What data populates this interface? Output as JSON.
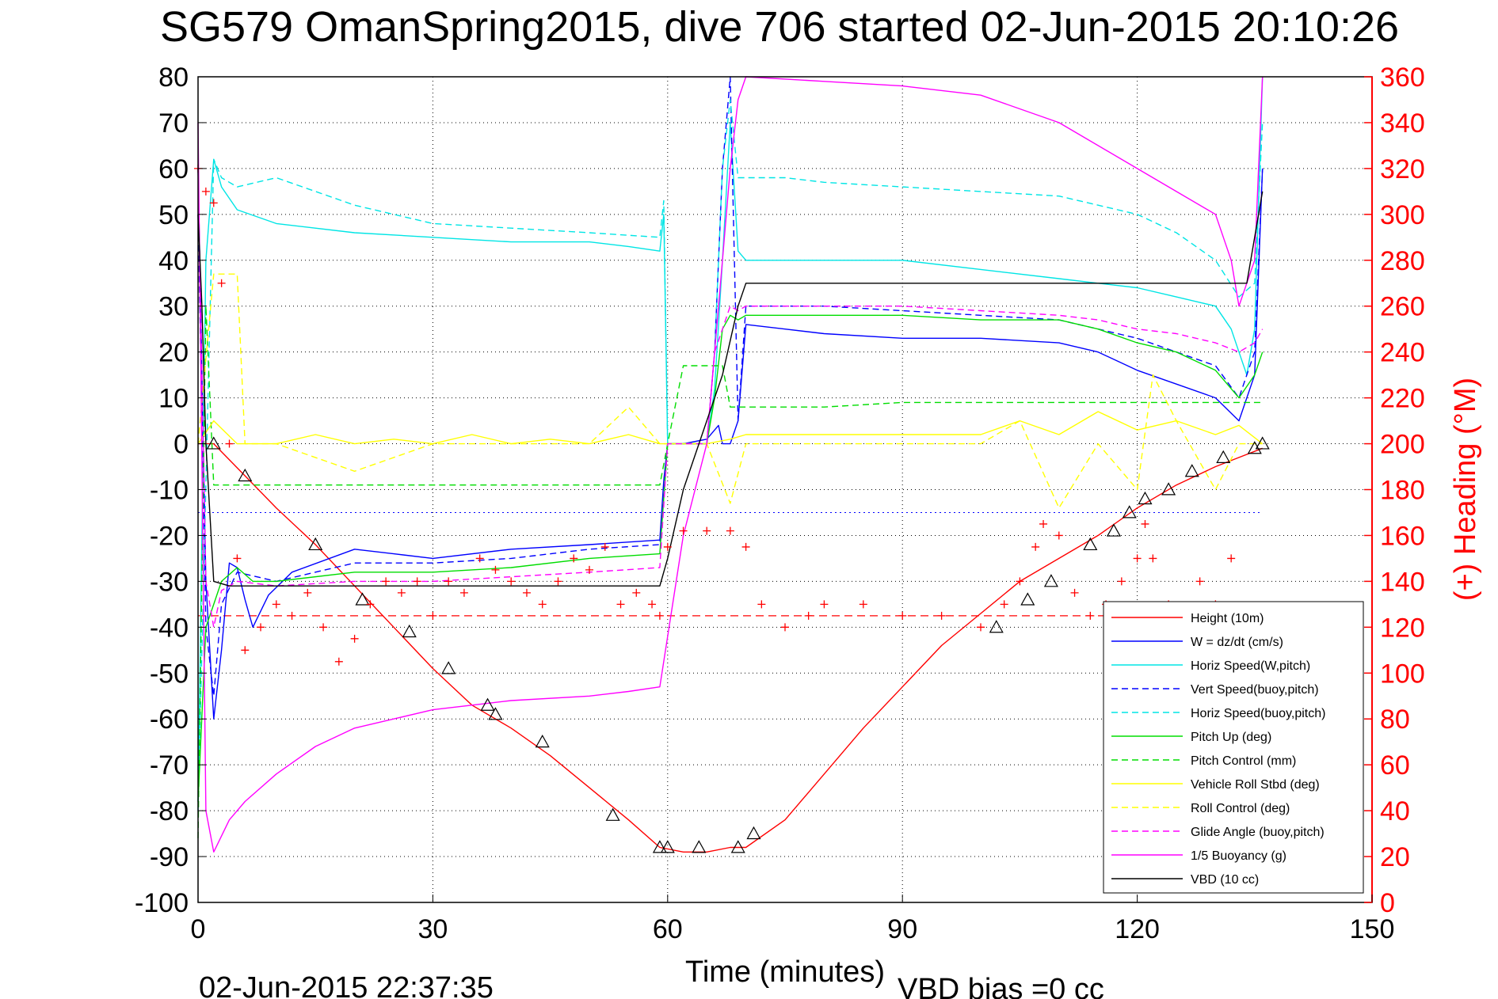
{
  "chart_data": {
    "type": "line",
    "title": "SG579 OmanSpring2015, dive 706 started 02-Jun-2015 20:10:26",
    "xlabel": "Time (minutes)",
    "ylabel_right": "(+) Heading (°M)",
    "footer_left": "02-Jun-2015 22:37:35",
    "footer_right": "VBD bias =0 cc",
    "xlim": [
      0,
      150
    ],
    "ylim": [
      -100,
      80
    ],
    "ylim_right": [
      0,
      360
    ],
    "xticks": [
      "0",
      "30",
      "60",
      "90",
      "120",
      "150"
    ],
    "yticks": [
      "80",
      "70",
      "60",
      "50",
      "40",
      "30",
      "20",
      "10",
      "0",
      "-10",
      "-20",
      "-30",
      "-40",
      "-50",
      "-60",
      "-70",
      "-80",
      "-90",
      "-100"
    ],
    "yticks_right": [
      "360",
      "340",
      "320",
      "300",
      "280",
      "260",
      "240",
      "220",
      "200",
      "180",
      "160",
      "140",
      "120",
      "100",
      "80",
      "60",
      "40",
      "20",
      "0"
    ],
    "grid": true,
    "legend_position": "bottom-right",
    "colors": {
      "axis_right": "#ff0000",
      "grid": "#000000"
    },
    "series": [
      {
        "name": "Height (10m)",
        "color": "#ff0000",
        "dash": "solid",
        "x": [
          0,
          2,
          6,
          10,
          15,
          20,
          25,
          30,
          35,
          40,
          45,
          50,
          55,
          59,
          62,
          65,
          68,
          70,
          75,
          80,
          85,
          90,
          95,
          100,
          105,
          110,
          115,
          120,
          125,
          130,
          133,
          136
        ],
        "y": [
          0,
          0,
          -7,
          -14,
          -22,
          -31,
          -40,
          -49,
          -57,
          -62,
          -68,
          -75,
          -82,
          -88,
          -89,
          -89,
          -88,
          -88,
          -82,
          -72,
          -62,
          -53,
          -44,
          -37,
          -30,
          -25,
          -20,
          -14,
          -9,
          -5,
          -3,
          -1
        ]
      },
      {
        "name": "W = dz/dt (cm/s)",
        "color": "#0000ff",
        "dash": "solid",
        "x": [
          0,
          1,
          2,
          3,
          4,
          5,
          6,
          7,
          9,
          12,
          20,
          25,
          30,
          40,
          50,
          59,
          59.5,
          60,
          62,
          65,
          66.5,
          67,
          68,
          69,
          70,
          75,
          80,
          90,
          100,
          110,
          115,
          120,
          125,
          130,
          133,
          135,
          136
        ],
        "y": [
          60,
          -30,
          -60,
          -45,
          -26,
          -27,
          -34,
          -40,
          -33,
          -28,
          -23,
          -24,
          -25,
          -23,
          -22,
          -21,
          -8,
          0,
          0,
          1,
          4,
          0,
          0,
          5,
          26,
          25,
          24,
          23,
          23,
          22,
          20,
          16,
          13,
          10,
          5,
          15,
          60
        ]
      },
      {
        "name": "Horiz Speed(W,pitch)",
        "color": "#00e5e5",
        "dash": "solid",
        "x": [
          0,
          1,
          2,
          3,
          5,
          10,
          20,
          30,
          40,
          50,
          55,
          59,
          59.5,
          60,
          62,
          65,
          66,
          67,
          68,
          69,
          70,
          75,
          80,
          90,
          100,
          110,
          115,
          120,
          125,
          130,
          132,
          133,
          134,
          135,
          136
        ],
        "y": [
          -78,
          40,
          62,
          56,
          51,
          48,
          46,
          45,
          44,
          44,
          43,
          42,
          50,
          0,
          0,
          0,
          12,
          40,
          70,
          42,
          40,
          40,
          40,
          40,
          38,
          36,
          35,
          34,
          32,
          30,
          25,
          20,
          15,
          25,
          80
        ]
      },
      {
        "name": "Vert Speed(buoy,pitch)",
        "color": "#0000ff",
        "dash": "dashed",
        "x": [
          0,
          1,
          2,
          3,
          5,
          10,
          20,
          30,
          40,
          50,
          59,
          60,
          62,
          65,
          66,
          67,
          68,
          69,
          70,
          80,
          90,
          100,
          110,
          120,
          125,
          130,
          133,
          135,
          136
        ],
        "y": [
          50,
          -40,
          -55,
          -35,
          -28,
          -30,
          -26,
          -26,
          -25,
          -23,
          -22,
          0,
          0,
          0,
          20,
          60,
          80,
          5,
          30,
          30,
          29,
          28,
          27,
          23,
          20,
          17,
          10,
          20,
          60
        ]
      },
      {
        "name": "Horiz Speed(buoy,pitch)",
        "color": "#00e5e5",
        "dash": "dashed",
        "x": [
          0,
          2,
          3,
          5,
          10,
          20,
          30,
          40,
          50,
          59,
          59.5,
          60,
          62,
          65,
          66,
          67,
          68,
          69,
          70,
          75,
          80,
          90,
          100,
          110,
          115,
          120,
          125,
          130,
          133,
          135,
          136
        ],
        "y": [
          -80,
          62,
          58,
          56,
          58,
          52,
          48,
          47,
          46,
          45,
          53,
          0,
          0,
          0,
          20,
          60,
          75,
          58,
          58,
          58,
          57,
          56,
          55,
          54,
          52,
          50,
          46,
          40,
          32,
          35,
          70
        ]
      },
      {
        "name": "Pitch Up (deg)",
        "color": "#00dd00",
        "dash": "solid",
        "x": [
          0,
          1,
          2,
          3,
          5,
          7,
          10,
          20,
          30,
          40,
          50,
          59,
          60,
          62,
          65,
          66,
          67,
          68,
          69,
          70,
          80,
          90,
          100,
          110,
          115,
          120,
          125,
          130,
          133,
          135,
          136
        ],
        "y": [
          -78,
          -40,
          -35,
          -30,
          -27,
          -30,
          -30,
          -28,
          -28,
          -27,
          -25,
          -24,
          0,
          0,
          0,
          10,
          25,
          28,
          27,
          28,
          28,
          28,
          27,
          27,
          25,
          22,
          20,
          16,
          10,
          15,
          20
        ]
      },
      {
        "name": "Pitch Control (mm)",
        "color": "#00dd00",
        "dash": "dashed",
        "x": [
          0,
          1,
          2,
          5,
          10,
          20,
          30,
          40,
          50,
          59,
          60,
          62,
          65,
          66,
          67,
          68,
          69,
          70,
          80,
          90,
          100,
          110,
          120,
          125,
          130,
          133,
          136
        ],
        "y": [
          -86,
          30,
          -9,
          -9,
          -9,
          -9,
          -9,
          -9,
          -9,
          -9,
          0,
          17,
          17,
          17,
          17,
          8,
          8,
          8,
          8,
          9,
          9,
          9,
          9,
          9,
          9,
          9,
          9
        ]
      },
      {
        "name": "Vehicle Roll Stbd (deg)",
        "color": "#ffff00",
        "dash": "solid",
        "x": [
          0,
          2,
          5,
          10,
          15,
          20,
          25,
          30,
          35,
          40,
          45,
          50,
          55,
          59,
          60,
          62,
          65,
          68,
          70,
          80,
          90,
          100,
          105,
          110,
          115,
          120,
          125,
          130,
          133,
          136
        ],
        "y": [
          0,
          5,
          0,
          0,
          2,
          0,
          1,
          0,
          2,
          0,
          1,
          0,
          2,
          0,
          0,
          0,
          0,
          1,
          2,
          2,
          2,
          2,
          5,
          2,
          7,
          3,
          5,
          2,
          4,
          0
        ]
      },
      {
        "name": "Roll Control (deg)",
        "color": "#ffff00",
        "dash": "dashed",
        "x": [
          0,
          2,
          3,
          5,
          6,
          10,
          20,
          30,
          40,
          50,
          55,
          59,
          60,
          62,
          65,
          68,
          70,
          80,
          90,
          100,
          105,
          110,
          115,
          120,
          122,
          125,
          130,
          133,
          136
        ],
        "y": [
          0,
          37,
          37,
          37,
          0,
          0,
          -6,
          0,
          0,
          0,
          8,
          0,
          0,
          0,
          0,
          -13,
          0,
          0,
          0,
          0,
          5,
          -14,
          0,
          -10,
          15,
          5,
          -10,
          0,
          0
        ]
      },
      {
        "name": "Glide Angle (buoy,pitch)",
        "color": "#ff00ff",
        "dash": "dashed",
        "x": [
          0,
          1,
          2,
          3,
          5,
          10,
          20,
          30,
          40,
          50,
          59,
          60,
          62,
          65,
          66,
          67,
          68,
          69,
          70,
          80,
          90,
          100,
          110,
          115,
          120,
          125,
          130,
          133,
          135,
          136
        ],
        "y": [
          60,
          -30,
          -40,
          -32,
          -30,
          -31,
          -30,
          -30,
          -29,
          -28,
          -27,
          0,
          0,
          0,
          20,
          25,
          30,
          29,
          30,
          30,
          30,
          29,
          28,
          27,
          25,
          24,
          22,
          20,
          22,
          25
        ]
      },
      {
        "name": "1/5 Buoyancy (g)",
        "color": "#ff00ff",
        "dash": "solid",
        "x": [
          0,
          1,
          2,
          4,
          6,
          10,
          15,
          20,
          25,
          30,
          40,
          50,
          55,
          59,
          62,
          65,
          67,
          68,
          69,
          70,
          80,
          90,
          100,
          110,
          120,
          125,
          130,
          132,
          133,
          135,
          136
        ],
        "y": [
          70,
          -80,
          -89,
          -82,
          -78,
          -72,
          -66,
          -62,
          -60,
          -58,
          -56,
          -55,
          -54,
          -53,
          -20,
          0,
          40,
          60,
          75,
          80,
          79,
          78,
          76,
          70,
          60,
          55,
          50,
          40,
          30,
          40,
          80
        ]
      },
      {
        "name": "VBD (10 cc)",
        "color": "#000000",
        "dash": "solid",
        "x": [
          0,
          0.5,
          1,
          2,
          4,
          10,
          20,
          30,
          40,
          50,
          58,
          59,
          60,
          62,
          65,
          67,
          69,
          70,
          80,
          90,
          100,
          110,
          120,
          125,
          130,
          134,
          135,
          136
        ],
        "y": [
          50,
          30,
          0,
          -30,
          -31,
          -31,
          -31,
          -31,
          -31,
          -31,
          -31,
          -31,
          -25,
          -10,
          5,
          15,
          30,
          35,
          35,
          35,
          35,
          35,
          35,
          35,
          35,
          35,
          45,
          55
        ]
      }
    ],
    "heading_series": {
      "marker": "+",
      "color": "#ff0000",
      "x": [
        0,
        1,
        2,
        3,
        4,
        5,
        6,
        8,
        10,
        12,
        14,
        16,
        18,
        20,
        22,
        24,
        26,
        28,
        30,
        32,
        34,
        36,
        38,
        40,
        42,
        44,
        46,
        48,
        50,
        52,
        54,
        56,
        58,
        59,
        60,
        62,
        65,
        68,
        70,
        72,
        75,
        78,
        80,
        85,
        90,
        95,
        100,
        103,
        105,
        107,
        108,
        110,
        112,
        114,
        116,
        118,
        120,
        121,
        122,
        124,
        126,
        128,
        130,
        132
      ],
      "y": [
        320,
        310,
        305,
        270,
        200,
        150,
        110,
        120,
        130,
        125,
        135,
        120,
        105,
        115,
        130,
        140,
        135,
        140,
        125,
        140,
        135,
        150,
        145,
        140,
        135,
        130,
        140,
        150,
        145,
        155,
        130,
        135,
        130,
        125,
        155,
        162,
        162,
        162,
        155,
        130,
        120,
        125,
        130,
        130,
        125,
        125,
        120,
        130,
        140,
        155,
        165,
        160,
        135,
        125,
        130,
        140,
        150,
        165,
        150,
        130,
        125,
        140,
        130,
        150
      ]
    },
    "heading_reference": {
      "value": 125,
      "color": "#ff0000",
      "dash": "dashed"
    },
    "dotted_reference": {
      "value": -15,
      "color": "#0000ff"
    },
    "direction_markers": {
      "color": "#000000",
      "x": [
        2,
        6,
        15,
        21,
        27,
        32,
        37,
        38,
        44,
        53,
        59,
        60,
        64,
        69,
        71,
        102,
        106,
        109,
        114,
        117,
        119,
        121,
        124,
        127,
        131,
        135,
        136
      ],
      "y": [
        0,
        -7,
        -22,
        -34,
        -41,
        -49,
        -57,
        -59,
        -65,
        -81,
        -88,
        -88,
        -88,
        -88,
        -85,
        -40,
        -34,
        -30,
        -22,
        -19,
        -15,
        -12,
        -10,
        -6,
        -3,
        -1,
        0
      ]
    }
  }
}
